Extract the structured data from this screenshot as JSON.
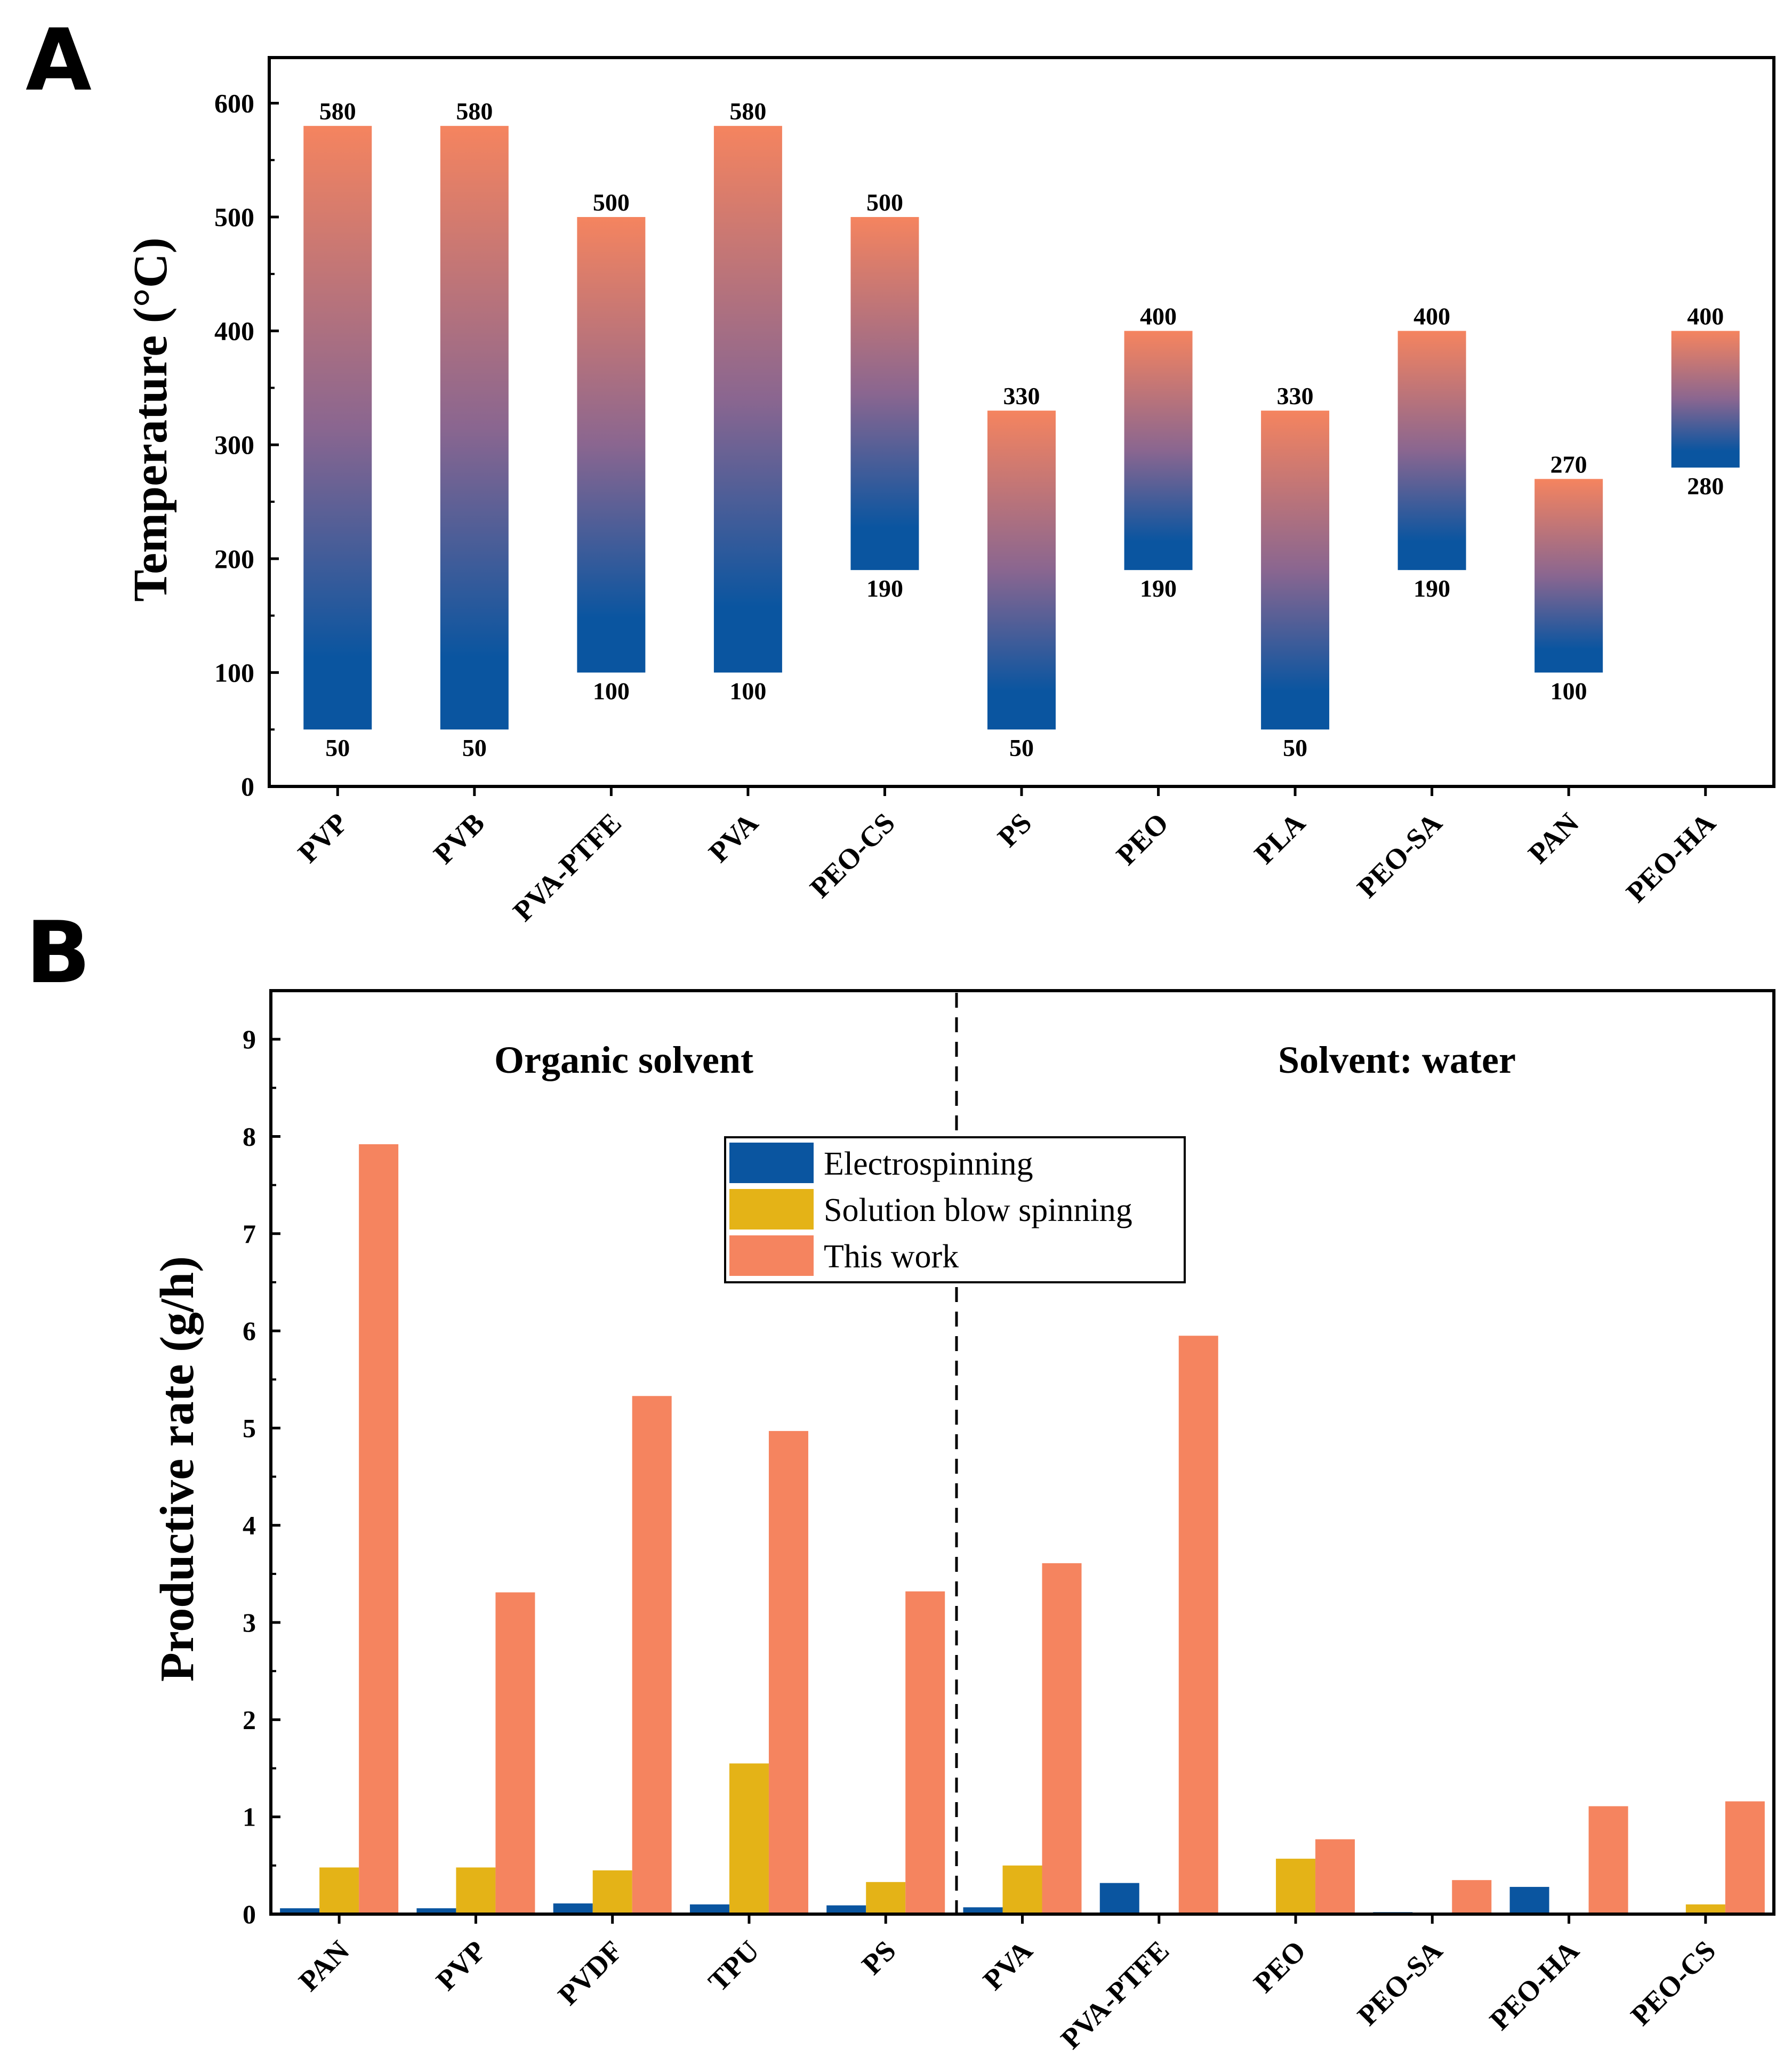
{
  "panels": {
    "a": "A",
    "b": "B"
  },
  "colors": {
    "orange": "#F5845F",
    "blue": "#0A55A0",
    "yellow": "#E4B317",
    "axis": "#000000"
  },
  "chart_data": [
    {
      "id": "A",
      "type": "bar",
      "subtype": "floating-range",
      "title": "",
      "xlabel": "",
      "ylabel": "Temperature (°C)",
      "ylim": [
        0,
        640
      ],
      "yticks": [
        0,
        100,
        200,
        300,
        400,
        500,
        600
      ],
      "categories": [
        "PVP",
        "PVB",
        "PVA-PTFE",
        "PVA",
        "PEO-CS",
        "PS",
        "PEO",
        "PLA",
        "PEO-SA",
        "PAN",
        "PEO-HA"
      ],
      "low": [
        50,
        50,
        100,
        100,
        190,
        50,
        190,
        50,
        190,
        100,
        280
      ],
      "high": [
        580,
        580,
        500,
        580,
        500,
        330,
        400,
        330,
        400,
        270,
        400
      ],
      "fill": "gradient from blue (low) to orange (high)"
    },
    {
      "id": "B",
      "type": "bar",
      "title": "",
      "xlabel": "",
      "ylabel": "Productive rate (g/h)",
      "ylim": [
        0,
        9.5
      ],
      "yticks": [
        0,
        1,
        2,
        3,
        4,
        5,
        6,
        7,
        8,
        9
      ],
      "categories": [
        "PAN",
        "PVP",
        "PVDF",
        "TPU",
        "PS",
        "PVA",
        "PVA-PTFE",
        "PEO",
        "PEO-SA",
        "PEO-HA",
        "PEO-CS"
      ],
      "series": [
        {
          "name": "Electrospinning",
          "color": "#0A55A0",
          "values": [
            0.06,
            0.06,
            0.11,
            0.1,
            0.09,
            0.07,
            0.32,
            0,
            0.02,
            0.28,
            0
          ]
        },
        {
          "name": "Solution blow spinning",
          "color": "#E4B317",
          "values": [
            0.48,
            0.48,
            0.45,
            1.55,
            0.33,
            0.5,
            0,
            0.57,
            0,
            0,
            0.1
          ]
        },
        {
          "name": "This work",
          "color": "#F5845F",
          "values": [
            7.92,
            3.31,
            5.33,
            4.97,
            3.32,
            3.61,
            5.95,
            0.77,
            0.35,
            1.11,
            1.16
          ]
        }
      ],
      "group_divider_after_index": 4,
      "groups": [
        "Organic solvent",
        "Solvent: water"
      ],
      "legend_position": "upper-center"
    }
  ]
}
